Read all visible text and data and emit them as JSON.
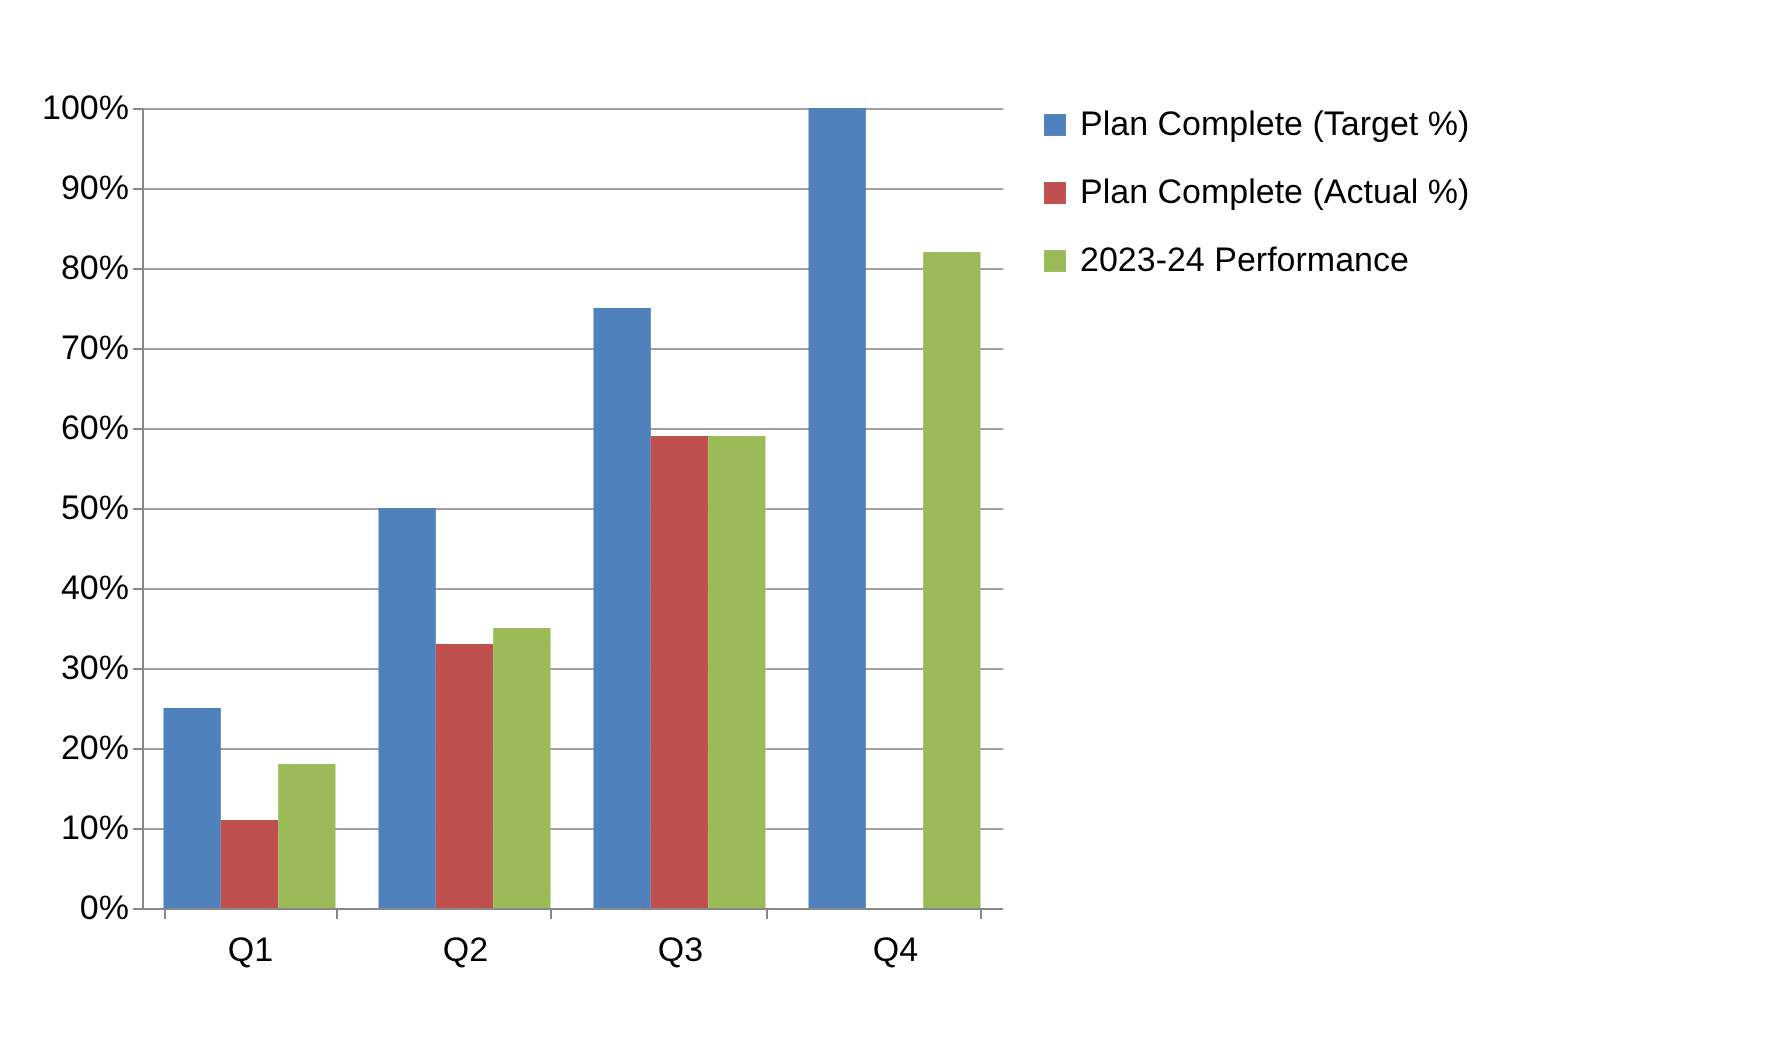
{
  "chart_data": {
    "type": "bar",
    "categories": [
      "Q1",
      "Q2",
      "Q3",
      "Q4"
    ],
    "series": [
      {
        "name": "Plan Complete (Target %)",
        "color": "#4f81bd",
        "values": [
          25,
          50,
          75,
          100
        ]
      },
      {
        "name": "Plan Complete (Actual %)",
        "color": "#c0504d",
        "values": [
          11,
          33,
          59,
          null
        ]
      },
      {
        "name": "2023-24 Performance",
        "color": "#9bbb59",
        "values": [
          18,
          35,
          59,
          82
        ]
      }
    ],
    "ylim": [
      0,
      100
    ],
    "yticks": [
      {
        "value": 0,
        "label": "0%"
      },
      {
        "value": 10,
        "label": "10%"
      },
      {
        "value": 20,
        "label": "20%"
      },
      {
        "value": 30,
        "label": "30%"
      },
      {
        "value": 40,
        "label": "40%"
      },
      {
        "value": 50,
        "label": "50%"
      },
      {
        "value": 60,
        "label": "60%"
      },
      {
        "value": 70,
        "label": "70%"
      },
      {
        "value": 80,
        "label": "80%"
      },
      {
        "value": 90,
        "label": "90%"
      },
      {
        "value": 100,
        "label": "100%"
      }
    ],
    "grid": "y",
    "legend": "right"
  }
}
